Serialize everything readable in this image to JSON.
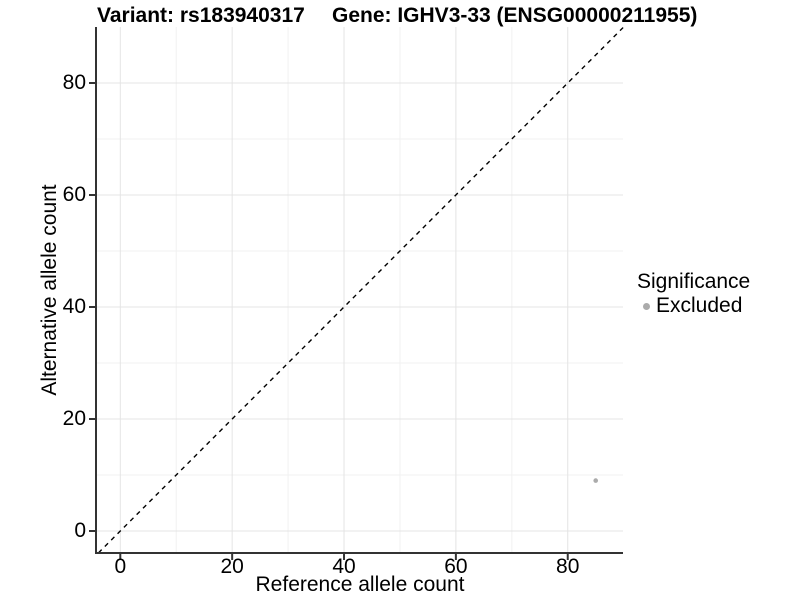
{
  "title": {
    "variant": "Variant: rs183940317",
    "gene": "Gene: IGHV3-33 (ENSG00000211955)"
  },
  "chart_data": {
    "type": "scatter",
    "title_left": "Variant: rs183940317",
    "title_right": "Gene: IGHV3-33 (ENSG00000211955)",
    "xlabel": "Reference allele count",
    "ylabel": "Alternative allele count",
    "xlim": [
      -4.3,
      90
    ],
    "ylim": [
      -4.3,
      90
    ],
    "x_ticks": [
      0,
      20,
      40,
      60,
      80
    ],
    "y_ticks": [
      0,
      20,
      40,
      60,
      80
    ],
    "x_minor_ticks": [
      10,
      30,
      50,
      70
    ],
    "y_minor_ticks": [
      10,
      30,
      50,
      70
    ],
    "grid": "major+minor",
    "identity_line": {
      "style": "dashed",
      "equation": "y = x",
      "color": "#000000"
    },
    "series": [
      {
        "name": "Excluded",
        "marker": "circle",
        "color": "#ababab",
        "points": [
          {
            "x": 85,
            "y": 9
          }
        ]
      }
    ],
    "legend": {
      "title": "Significance",
      "position": "right",
      "items": [
        {
          "label": "Excluded",
          "color": "#ababab",
          "marker": "circle"
        }
      ]
    },
    "colors": {
      "axis": "#333333",
      "grid_major": "#e4e4e4",
      "grid_minor": "#f1f1f1",
      "text": "#000000",
      "background": "#ffffff"
    }
  }
}
